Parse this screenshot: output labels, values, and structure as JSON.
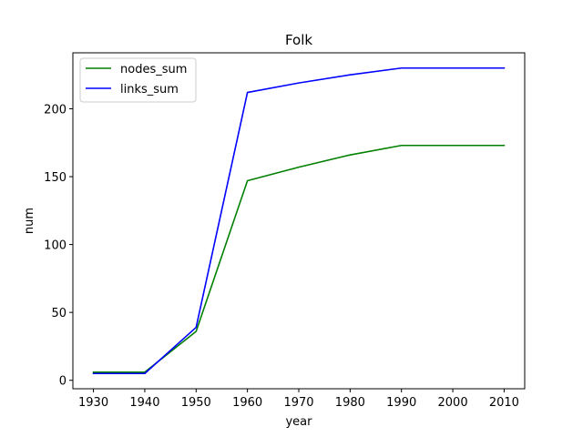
{
  "chart_data": {
    "type": "line",
    "title": "Folk",
    "xlabel": "year",
    "ylabel": "num",
    "x": [
      1930,
      1940,
      1950,
      1960,
      1970,
      1980,
      1990,
      2000,
      2010
    ],
    "x_ticks": [
      "1930",
      "1940",
      "1950",
      "1960",
      "1970",
      "1980",
      "1990",
      "2000",
      "2010"
    ],
    "y_ticks": [
      "0",
      "50",
      "100",
      "150",
      "200"
    ],
    "xlim": [
      1925.994,
      2014.007
    ],
    "ylim": [
      -6.225,
      241.225
    ],
    "grid": false,
    "legend_position": "upper-left",
    "series": [
      {
        "name": "nodes_sum",
        "color": "#008000",
        "values": [
          6,
          6,
          36,
          147,
          157,
          166,
          173,
          173,
          173
        ]
      },
      {
        "name": "links_sum",
        "color": "#0000ff",
        "values": [
          5,
          5,
          39,
          212,
          219,
          225,
          230,
          230,
          230
        ]
      }
    ]
  }
}
